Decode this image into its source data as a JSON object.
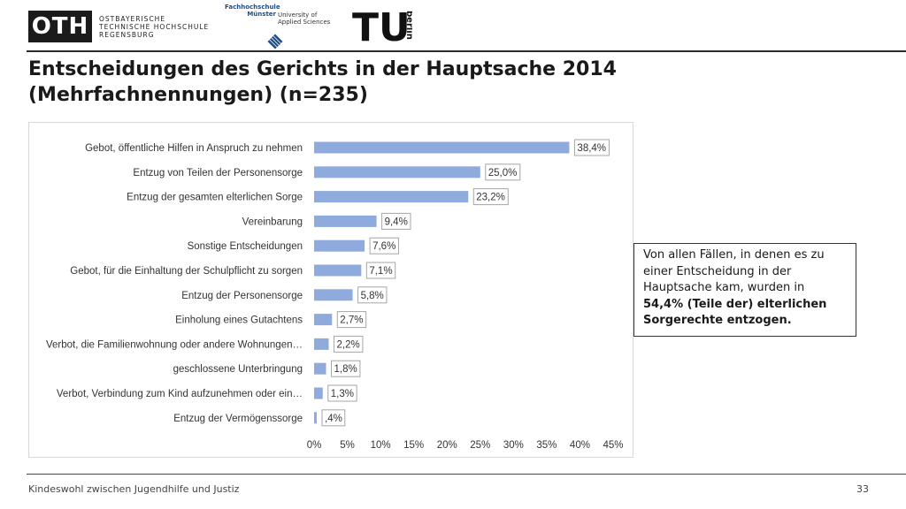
{
  "header": {
    "oth": {
      "mark": "OTH",
      "lines": [
        "OSTBAYERISCHE",
        "TECHNISCHE HOCHSCHULE",
        "REGENSBURG"
      ]
    },
    "fh": {
      "name_lines": [
        "Fachhochschule",
        "Münster"
      ],
      "sub_lines": [
        "University of",
        "Applied Sciences"
      ]
    },
    "tu": {
      "mark": "TU",
      "sub": "berlin"
    }
  },
  "slide": {
    "title_line1": "Entscheidungen des Gerichts in der Hauptsache 2014",
    "title_line2": "(Mehrfachnennungen) (n=235)"
  },
  "note": {
    "text_plain": "Von allen Fällen, in denen es zu einer Entscheidung in der Hauptsache kam, wurden in",
    "text_bold": "54,4% (Teile der) elterlichen Sorgerechte entzogen."
  },
  "footer": {
    "text": "Kindeswohl zwischen Jugendhilfe und Justiz",
    "page": "33"
  },
  "chart_data": {
    "type": "bar",
    "orientation": "horizontal",
    "categories": [
      "Gebot, öffentliche Hilfen in Anspruch zu nehmen",
      "Entzug von Teilen der Personensorge",
      "Entzug der gesamten elterlichen Sorge",
      "Vereinbarung",
      "Sonstige Entscheidungen",
      "Gebot, für die Einhaltung der Schulpflicht zu sorgen",
      "Entzug der Personensorge",
      "Einholung eines Gutachtens",
      "Verbot, die Familienwohnung oder andere Wohnungen…",
      "geschlossene Unterbringung",
      "Verbot, Verbindung zum Kind aufzunehmen oder ein…",
      "Entzug der Vermögenssorge"
    ],
    "values": [
      38.4,
      25.0,
      23.2,
      9.4,
      7.6,
      7.1,
      5.8,
      2.7,
      2.2,
      1.8,
      1.3,
      0.4
    ],
    "data_labels": [
      "38,4%",
      "25,0%",
      "23,2%",
      "9,4%",
      "7,6%",
      "7,1%",
      "5,8%",
      "2,7%",
      "2,2%",
      "1,8%",
      "1,3%",
      ",4%"
    ],
    "xlim": [
      0,
      45
    ],
    "xticks": [
      0,
      5,
      10,
      15,
      20,
      25,
      30,
      35,
      40,
      45
    ],
    "xtick_labels": [
      "0%",
      "5%",
      "10%",
      "15%",
      "20%",
      "25%",
      "30%",
      "35%",
      "40%",
      "45%"
    ],
    "grid": false,
    "bar_color": "#8faadc",
    "label_border_color": "#a6a6a6"
  }
}
